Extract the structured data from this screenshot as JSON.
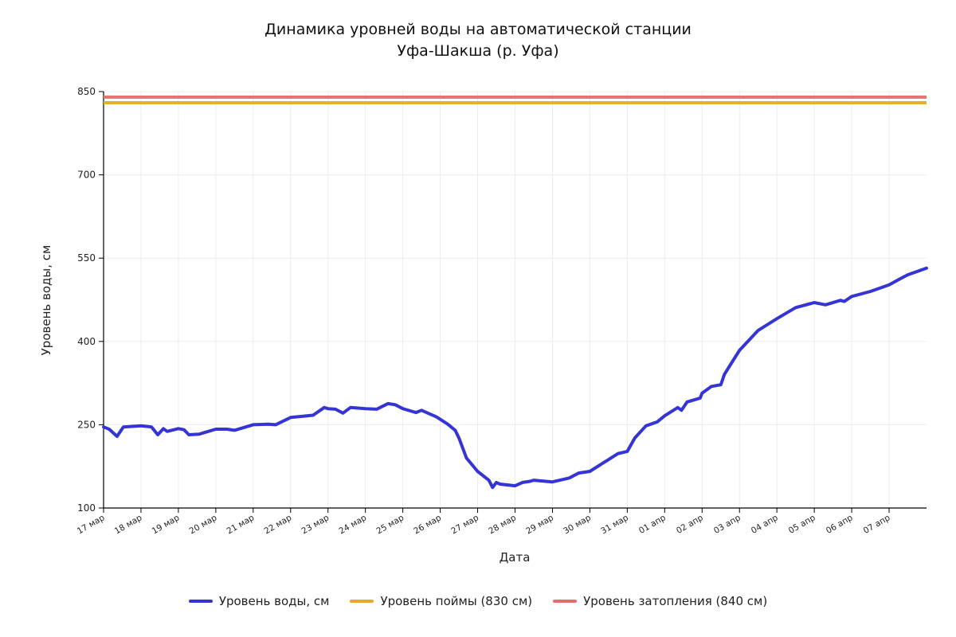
{
  "chart_data": {
    "type": "line",
    "title": [
      "Динамика уровней воды на автоматической станции",
      "Уфа-Шакша (р. Уфа)"
    ],
    "xlabel": "Дата",
    "ylabel": "Уровень воды, см",
    "ylim": [
      100,
      850
    ],
    "yticks": [
      100,
      250,
      400,
      550,
      700,
      850
    ],
    "xlim_days": [
      0,
      22
    ],
    "xtick_labels": [
      "17 мар",
      "18 мар",
      "19 мар",
      "20 мар",
      "21 мар",
      "22 мар",
      "23 мар",
      "24 мар",
      "25 мар",
      "26 мар",
      "27 мар",
      "28 мар",
      "29 мар",
      "30 мар",
      "31 мар",
      "01 апр",
      "02 апр",
      "03 апр",
      "04 апр",
      "05 апр",
      "06 апр",
      "07 апр"
    ],
    "grid": true,
    "legend_position": "bottom",
    "series": [
      {
        "name": "Уровень воды, см",
        "color": "#3535d6",
        "x": [
          0,
          0.15,
          0.36,
          0.53,
          1.0,
          1.15,
          1.28,
          1.45,
          1.6,
          1.7,
          2.0,
          2.15,
          2.28,
          2.55,
          3.0,
          3.3,
          3.5,
          4.0,
          4.4,
          4.6,
          5.0,
          5.3,
          5.6,
          5.9,
          6.0,
          6.2,
          6.4,
          6.6,
          7.0,
          7.3,
          7.6,
          7.8,
          8.0,
          8.2,
          8.35,
          8.5,
          8.9,
          9.2,
          9.4,
          9.5,
          9.7,
          10.0,
          10.3,
          10.4,
          10.5,
          10.6,
          11.0,
          11.2,
          11.4,
          11.5,
          12.0,
          12.45,
          12.7,
          13.0,
          13.4,
          13.75,
          14.0,
          14.2,
          14.5,
          14.8,
          15.0,
          15.35,
          15.45,
          15.6,
          15.95,
          16.0,
          16.25,
          16.5,
          16.6,
          17.0,
          17.5,
          18.0,
          18.5,
          19.0,
          19.3,
          19.7,
          19.8,
          20.0,
          20.5,
          21.0,
          21.3,
          21.5,
          22.0
        ],
        "values": [
          246,
          242,
          229,
          246,
          248,
          247,
          246,
          232,
          243,
          238,
          243,
          241,
          232,
          233,
          242,
          242,
          240,
          250,
          251,
          250,
          263,
          265,
          267,
          281,
          279,
          278,
          271,
          281,
          279,
          278,
          288,
          286,
          279,
          275,
          272,
          276,
          264,
          251,
          240,
          226,
          190,
          166,
          150,
          137,
          146,
          143,
          140,
          146,
          148,
          150,
          147,
          154,
          163,
          166,
          183,
          198,
          202,
          226,
          248,
          255,
          266,
          281,
          276,
          291,
          298,
          307,
          319,
          322,
          341,
          384,
          420,
          441,
          461,
          470,
          466,
          474,
          472,
          481,
          490,
          502,
          513,
          520,
          532
        ]
      },
      {
        "name": "Уровень поймы (830 см)",
        "color": "#e8a82a",
        "constant": 830
      },
      {
        "name": "Уровень затопления (840 см)",
        "color": "#ea6b6b",
        "constant": 840
      }
    ]
  }
}
